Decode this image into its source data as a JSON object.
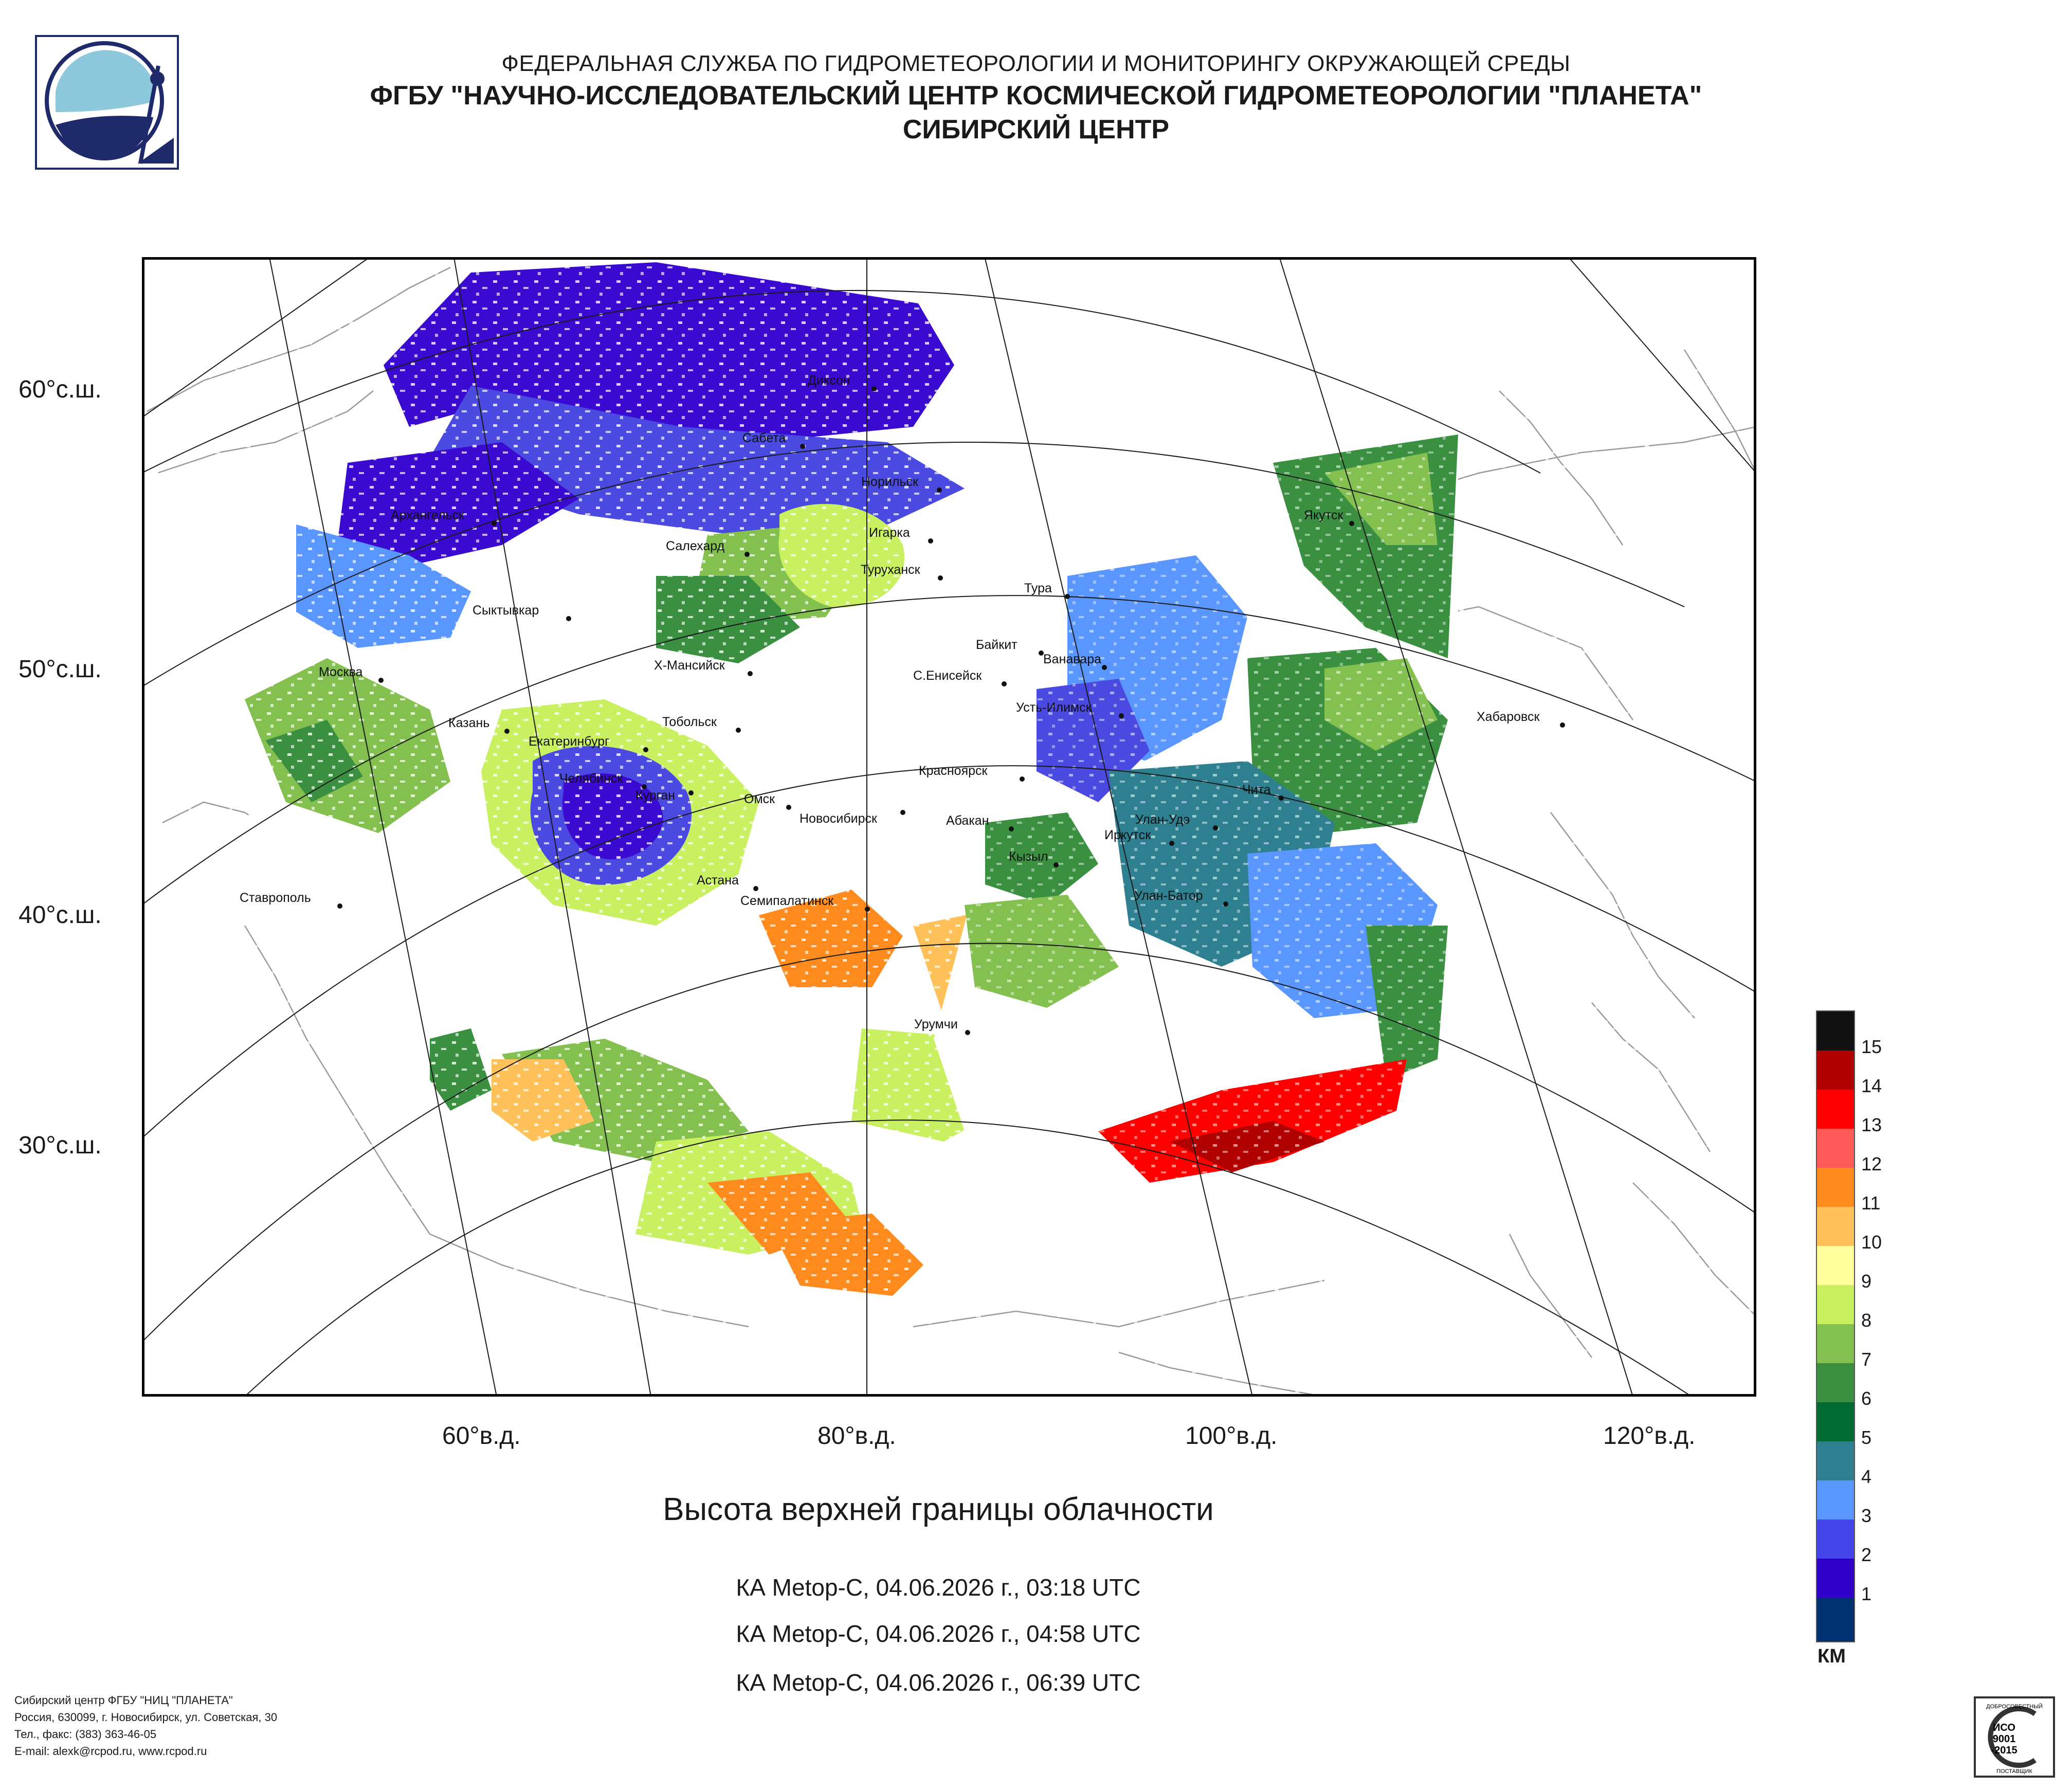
{
  "header": {
    "line1": "ФЕДЕРАЛЬНАЯ СЛУЖБА ПО ГИДРОМЕТЕОРОЛОГИИ И МОНИТОРИНГУ ОКРУЖАЮЩЕЙ СРЕДЫ",
    "line2": "ФГБУ \"НАУЧНО-ИССЛЕДОВАТЕЛЬСКИЙ ЦЕНТР КОСМИЧЕСКОЙ ГИДРОМЕТЕОРОЛОГИИ \"ПЛАНЕТА\"",
    "line3": "СИБИРСКИЙ ЦЕНТР"
  },
  "product_title": "Высота верхней границы облачности",
  "passes": [
    "КА Metop-C, 04.06.2026 г., 03:18 UTC",
    "КА Metop-C, 04.06.2026 г., 04:58 UTC",
    "КА Metop-C, 04.06.2026 г., 06:39 UTC"
  ],
  "lat_labels": [
    "60°с.ш.",
    "50°с.ш.",
    "40°с.ш.",
    "30°с.ш."
  ],
  "lon_labels": [
    "60°в.д.",
    "80°в.д.",
    "100°в.д.",
    "120°в.д."
  ],
  "cities": [
    "Диксон",
    "Сабета",
    "Норильск",
    "Игарка",
    "Салехард",
    "Туруханск",
    "Архангельск",
    "Тура",
    "Сыктывкар",
    "Якутск",
    "Байкит",
    "Ванавара",
    "Москва",
    "Х-Мансийск",
    "С.Енисейск",
    "Усть-Илимск",
    "Казань",
    "Тобольск",
    "Екатеринбург",
    "Хабаровск",
    "Челябинск",
    "Курган",
    "Красноярск",
    "Омск",
    "Новосибирск",
    "Чита",
    "Абакан",
    "Улан-Удэ",
    "Иркутск",
    "Кызыл",
    "Астана",
    "Ставрополь",
    "Улан-Батор",
    "Семипалатинск",
    "Урумчи"
  ],
  "legend": {
    "unit": "КМ",
    "ticks": [
      "15",
      "14",
      "13",
      "12",
      "11",
      "10",
      "9",
      "8",
      "7",
      "6",
      "5",
      "4",
      "3",
      "2",
      "1"
    ],
    "colors": [
      "#111111",
      "#b00000",
      "#ff0000",
      "#ff5a5a",
      "#ff8a1e",
      "#ffc25a",
      "#ffff9e",
      "#c8f060",
      "#84c050",
      "#3a9040",
      "#006a35",
      "#2e8090",
      "#5a96ff",
      "#4444e8",
      "#3000c8",
      "#003070"
    ]
  },
  "footer": {
    "line1": "Сибирский центр ФГБУ \"НИЦ \"ПЛАНЕТА\"",
    "line2": "Россия, 630099, г. Новосибирск, ул. Советская, 30",
    "line3": "Тел., факс: (383) 363-46-05",
    "line4": "E-mail: alexk@rcpod.ru, www.rcpod.ru"
  },
  "iso_badge": {
    "top": "ДОБРОСОВЕСТНЫЙ",
    "mid1": "ИСО",
    "mid2": "9001",
    "mid3": "-2015",
    "bottom": "ПОСТАВЩИК"
  }
}
